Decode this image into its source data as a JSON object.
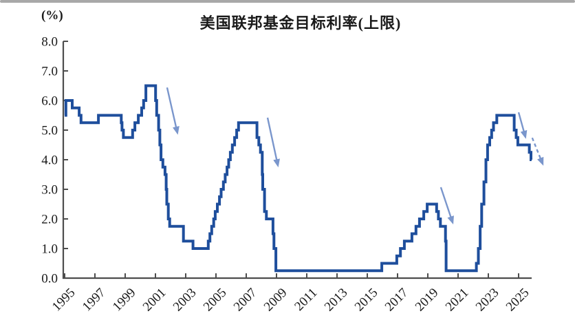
{
  "header": {
    "unit_label": "(%)",
    "title": "美国联邦基金目标利率(上限)"
  },
  "colors": {
    "line": "#1e4e9c",
    "arrow": "#7a96cc",
    "axis": "#4d4d4d",
    "text": "#1a1a1a",
    "top_bar": "#a8a8a8"
  },
  "chart_data": {
    "type": "line",
    "line_style": "step-post",
    "title": "美国联邦基金目标利率(上限)",
    "ylabel": "(%)",
    "xlim": [
      1995,
      2026.6
    ],
    "ylim": [
      0,
      8
    ],
    "grid": false,
    "legend": "none",
    "ytick_labels": [
      "0.0",
      "1.0",
      "2.0",
      "3.0",
      "4.0",
      "5.0",
      "6.0",
      "7.0",
      "8.0"
    ],
    "xtick_labels": [
      "1995",
      "1997",
      "1999",
      "2001",
      "2003",
      "2005",
      "2007",
      "2009",
      "2011",
      "2013",
      "2015",
      "2017",
      "2019",
      "2021",
      "2023",
      "2025"
    ],
    "series": [
      {
        "name": "美国联邦基金目标利率(上限)",
        "points": [
          [
            1995.0,
            5.5
          ],
          [
            1995.08,
            6.0
          ],
          [
            1995.5,
            5.75
          ],
          [
            1995.96,
            5.5
          ],
          [
            1996.08,
            5.25
          ],
          [
            1997.23,
            5.5
          ],
          [
            1998.74,
            5.25
          ],
          [
            1998.79,
            5.0
          ],
          [
            1998.88,
            4.75
          ],
          [
            1999.49,
            5.0
          ],
          [
            1999.64,
            5.25
          ],
          [
            1999.87,
            5.5
          ],
          [
            2000.09,
            5.75
          ],
          [
            2000.22,
            6.0
          ],
          [
            2000.37,
            6.5
          ],
          [
            2001.01,
            6.0
          ],
          [
            2001.08,
            5.5
          ],
          [
            2001.21,
            5.0
          ],
          [
            2001.29,
            4.5
          ],
          [
            2001.37,
            4.0
          ],
          [
            2001.49,
            3.75
          ],
          [
            2001.63,
            3.5
          ],
          [
            2001.71,
            3.0
          ],
          [
            2001.75,
            2.5
          ],
          [
            2001.85,
            2.0
          ],
          [
            2001.94,
            1.75
          ],
          [
            2002.85,
            1.25
          ],
          [
            2003.48,
            1.0
          ],
          [
            2004.49,
            1.25
          ],
          [
            2004.6,
            1.5
          ],
          [
            2004.72,
            1.75
          ],
          [
            2004.85,
            2.0
          ],
          [
            2004.95,
            2.25
          ],
          [
            2005.09,
            2.5
          ],
          [
            2005.23,
            2.75
          ],
          [
            2005.34,
            3.0
          ],
          [
            2005.49,
            3.25
          ],
          [
            2005.61,
            3.5
          ],
          [
            2005.73,
            3.75
          ],
          [
            2005.84,
            4.0
          ],
          [
            2005.95,
            4.25
          ],
          [
            2006.08,
            4.5
          ],
          [
            2006.23,
            4.75
          ],
          [
            2006.37,
            5.0
          ],
          [
            2006.49,
            5.25
          ],
          [
            2007.71,
            4.75
          ],
          [
            2007.83,
            4.5
          ],
          [
            2007.94,
            4.25
          ],
          [
            2008.06,
            3.5
          ],
          [
            2008.09,
            3.0
          ],
          [
            2008.21,
            2.25
          ],
          [
            2008.33,
            2.0
          ],
          [
            2008.77,
            1.5
          ],
          [
            2008.83,
            1.0
          ],
          [
            2008.96,
            0.25
          ],
          [
            2015.96,
            0.5
          ],
          [
            2016.95,
            0.75
          ],
          [
            2017.19,
            1.0
          ],
          [
            2017.45,
            1.25
          ],
          [
            2017.95,
            1.5
          ],
          [
            2018.22,
            1.75
          ],
          [
            2018.45,
            2.0
          ],
          [
            2018.73,
            2.25
          ],
          [
            2018.96,
            2.5
          ],
          [
            2019.58,
            2.25
          ],
          [
            2019.7,
            2.0
          ],
          [
            2019.83,
            1.75
          ],
          [
            2020.17,
            1.25
          ],
          [
            2020.21,
            0.25
          ],
          [
            2022.21,
            0.5
          ],
          [
            2022.34,
            1.0
          ],
          [
            2022.46,
            1.75
          ],
          [
            2022.56,
            2.5
          ],
          [
            2022.71,
            3.25
          ],
          [
            2022.84,
            4.0
          ],
          [
            2022.95,
            4.5
          ],
          [
            2023.09,
            4.75
          ],
          [
            2023.22,
            5.0
          ],
          [
            2023.34,
            5.25
          ],
          [
            2023.56,
            5.5
          ],
          [
            2024.71,
            5.0
          ],
          [
            2024.84,
            4.75
          ],
          [
            2024.95,
            4.5
          ],
          [
            2025.71,
            4.25
          ],
          [
            2025.82,
            4.0
          ],
          [
            2025.86,
            4.0
          ]
        ]
      }
    ],
    "arrows": [
      {
        "style": "solid",
        "from": [
          2001.77,
          6.44
        ],
        "to": [
          2002.45,
          4.91
        ]
      },
      {
        "style": "solid",
        "from": [
          2008.41,
          5.42
        ],
        "to": [
          2009.09,
          3.81
        ]
      },
      {
        "style": "solid",
        "from": [
          2019.86,
          3.07
        ],
        "to": [
          2020.64,
          1.88
        ]
      },
      {
        "style": "solid",
        "from": [
          2025.0,
          5.6
        ],
        "to": [
          2025.45,
          4.77
        ]
      },
      {
        "style": "dashed",
        "from": [
          2025.9,
          4.74
        ],
        "to": [
          2026.59,
          3.86
        ]
      }
    ]
  }
}
